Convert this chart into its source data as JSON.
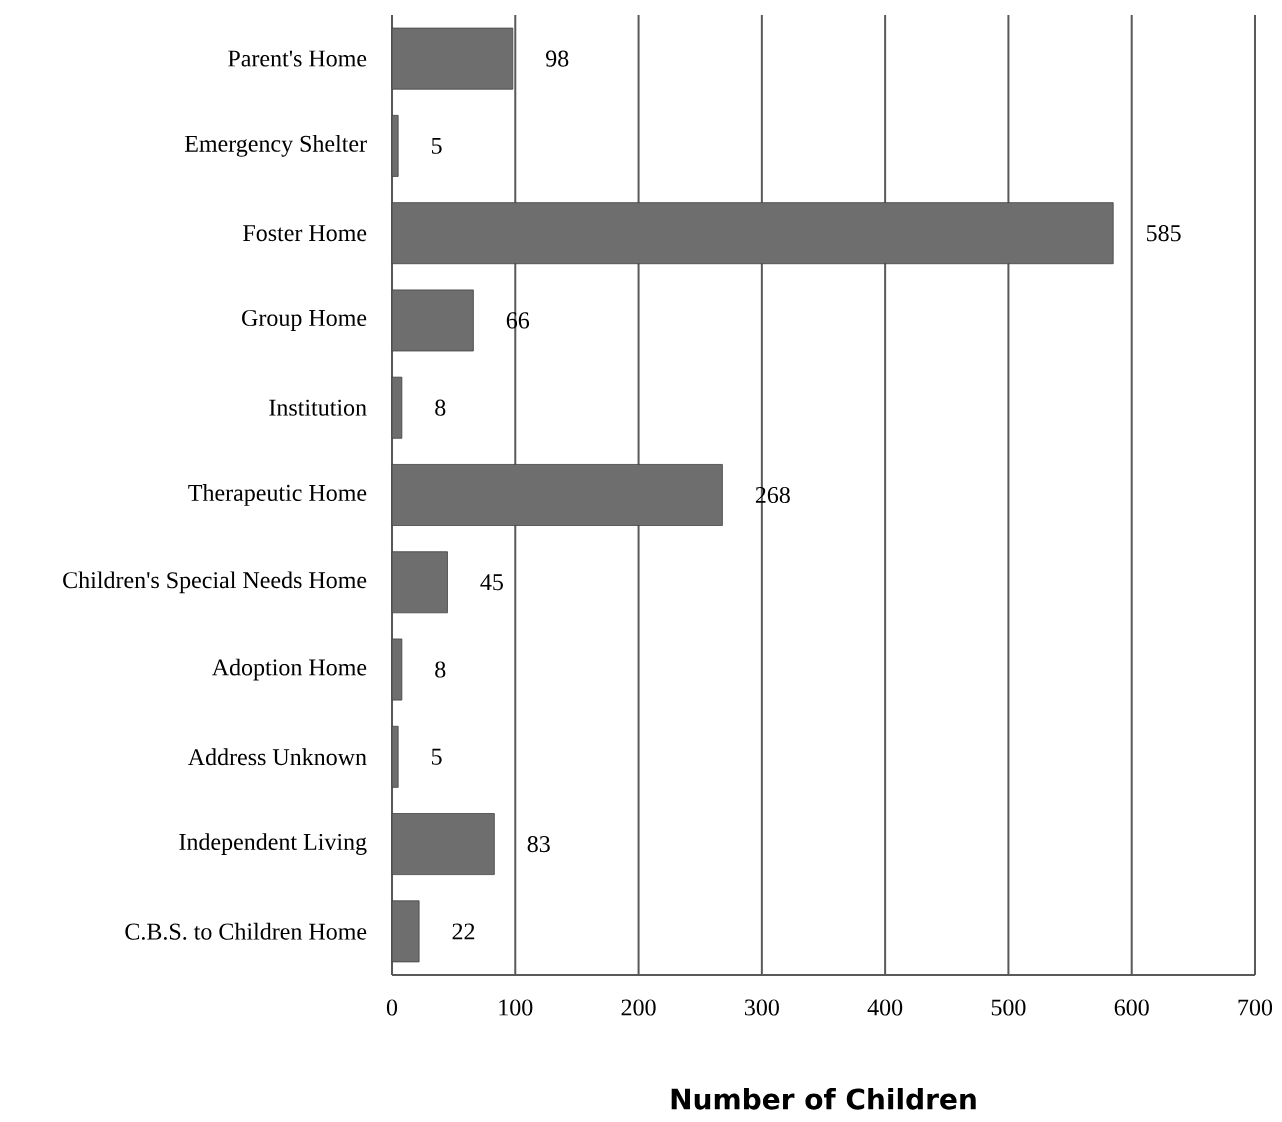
{
  "chart_data": {
    "type": "bar",
    "orientation": "horizontal",
    "xlabel": "Number of Children",
    "categories": [
      "Parent's Home",
      "Emergency Shelter",
      "Foster Home",
      "Group Home",
      "Institution",
      "Therapeutic Home",
      "Children's Special Needs Home",
      "Adoption Home",
      "Address Unknown",
      "Independent Living",
      "C.B.S. to Children Home"
    ],
    "values": [
      98,
      5,
      585,
      66,
      8,
      268,
      45,
      8,
      5,
      83,
      22
    ],
    "value_labels": [
      "98",
      "5",
      "585",
      "66",
      "8",
      "268",
      "45",
      "8",
      "5",
      "83",
      "22"
    ],
    "color": "#6e6e6e",
    "xlim": [
      0,
      700
    ],
    "xticks": [
      0,
      100,
      200,
      300,
      400,
      500,
      600,
      700
    ],
    "grid": "x"
  }
}
